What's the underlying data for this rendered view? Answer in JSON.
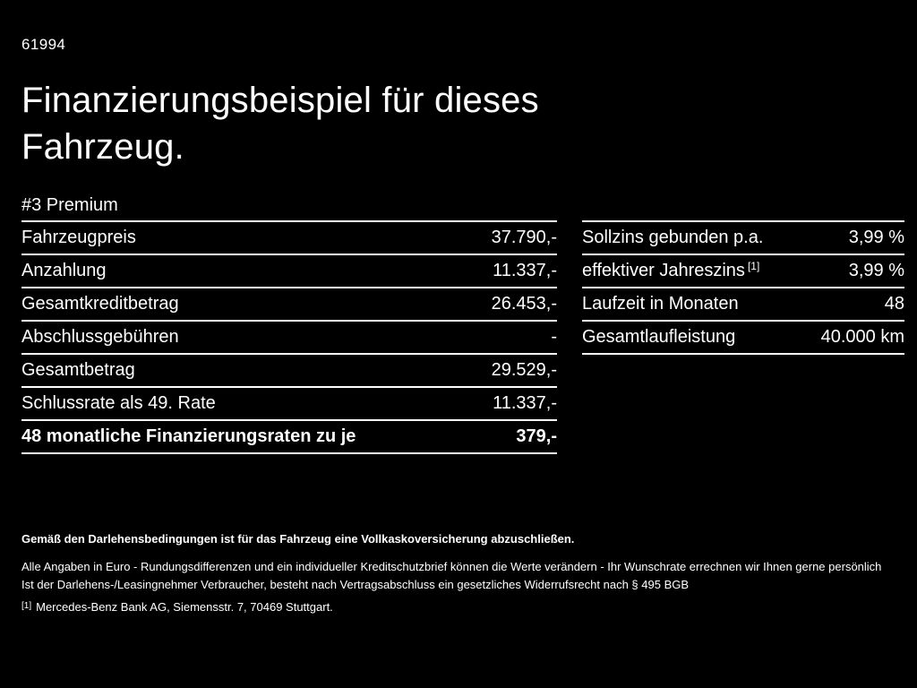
{
  "colors": {
    "background": "#000000",
    "text": "#ffffff",
    "rule": "#ffffff"
  },
  "page": {
    "id": "61994",
    "title_line1": "Finanzierungsbeispiel für dieses",
    "title_line2": "Fahrzeug.",
    "subtitle": "#3 Premium"
  },
  "left_table": {
    "rows": [
      {
        "label": "Fahrzeugpreis",
        "value": "37.790,-"
      },
      {
        "label": "Anzahlung",
        "value": "11.337,-"
      },
      {
        "label": "Gesamtkreditbetrag",
        "value": "26.453,-"
      },
      {
        "label": "Abschlussgebühren",
        "value": "-"
      },
      {
        "label": "Gesamtbetrag",
        "value": "29.529,-"
      },
      {
        "label": "Schlussrate als 49. Rate",
        "value": "11.337,-"
      },
      {
        "label": "48 monatliche Finanzierungsraten zu je",
        "value": "379,-"
      }
    ]
  },
  "right_table": {
    "rows": [
      {
        "label": "Sollzins gebunden p.a.",
        "sup": "",
        "value": "3,99 %"
      },
      {
        "label": "effektiver Jahreszins",
        "sup": "[1]",
        "value": "3,99 %"
      },
      {
        "label": "Laufzeit in Monaten",
        "sup": "",
        "value": "48"
      },
      {
        "label": "Gesamtlaufleistung",
        "sup": "",
        "value": "40.000 km"
      }
    ]
  },
  "footer": {
    "bold_note": "Gemäß den Darlehensbedingungen ist für das Fahrzeug eine Vollkaskoversicherung abzuschließen.",
    "note1": "Alle Angaben in Euro - Rundungsdifferenzen und ein individueller Kreditschutzbrief können die Werte verändern - Ihr Wunschrate errechnen wir Ihnen gerne persönlich",
    "note2": "Ist der Darlehens-/Leasingnehmer Verbraucher, besteht nach Vertragsabschluss ein gesetzliches Widerrufsrecht nach § 495 BGB",
    "footnote_marker": "[1]",
    "footnote_text": "Mercedes-Benz Bank AG, Siemensstr. 7, 70469 Stuttgart."
  }
}
